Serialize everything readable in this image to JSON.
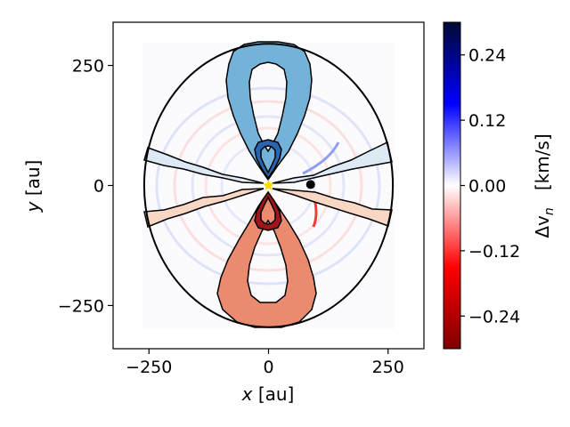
{
  "chart_data": {
    "type": "heatmap",
    "title": "",
    "xlabel_var": "x",
    "xlabel_unit": " [au]",
    "ylabel_var": "y",
    "ylabel_unit": " [au]",
    "xlim": [
      -325,
      325
    ],
    "ylim": [
      -340,
      340
    ],
    "xticks": [
      -250,
      0,
      250
    ],
    "xtick_labels": [
      "−250",
      "0",
      "250"
    ],
    "yticks": [
      -250,
      0,
      250
    ],
    "ytick_labels": [
      "−250",
      "0",
      "250"
    ],
    "disk_outline": {
      "center": [
        0,
        0
      ],
      "rx": 260,
      "ry": 295
    },
    "star": {
      "x": 0,
      "y": 0,
      "color": "#FFD700"
    },
    "planet": {
      "x": 88,
      "y": 2,
      "color": "#000000"
    },
    "regions": [
      {
        "name": "upper-large-lobe",
        "color": "#74b3d9"
      },
      {
        "name": "lower-large-lobe",
        "color": "#ea8a6f"
      },
      {
        "name": "upper-small-lobe",
        "color": "#2b65b0"
      },
      {
        "name": "lower-small-lobe",
        "color": "#a0141b"
      },
      {
        "name": "left-upper-wedge",
        "color": "#dde9f4"
      },
      {
        "name": "left-lower-wedge",
        "color": "#f9d7c5"
      },
      {
        "name": "right-upper-wedge",
        "color": "#dde9f4"
      },
      {
        "name": "right-lower-wedge",
        "color": "#f9d7c5"
      }
    ],
    "colorbar": {
      "label": "Δv",
      "label_sub": "n",
      "label_unit": "[km/s]",
      "vmin": -0.3,
      "vmax": 0.3,
      "cmap": "seismic_r",
      "ticks": [
        0.24,
        0.12,
        0.0,
        -0.12,
        -0.24
      ],
      "tick_labels": [
        "0.24",
        "0.12",
        "0.00",
        "−0.12",
        "−0.24"
      ],
      "colors": [
        "#000a35",
        "#0000ff",
        "#ffffff",
        "#ff0000",
        "#7e0000"
      ]
    }
  }
}
